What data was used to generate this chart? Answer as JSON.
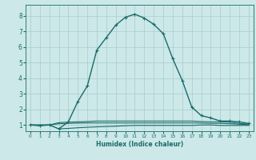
{
  "title": "",
  "xlabel": "Humidex (Indice chaleur)",
  "ylabel": "",
  "bg_color": "#cce8e8",
  "line_color": "#1a6b6b",
  "grid_color": "#aacccc",
  "xlim": [
    -0.5,
    23.5
  ],
  "ylim": [
    0.6,
    8.7
  ],
  "xticks": [
    0,
    1,
    2,
    3,
    4,
    5,
    6,
    7,
    8,
    9,
    10,
    11,
    12,
    13,
    14,
    15,
    16,
    17,
    18,
    19,
    20,
    21,
    22,
    23
  ],
  "yticks": [
    1,
    2,
    3,
    4,
    5,
    6,
    7,
    8
  ],
  "main_curve_x": [
    0,
    1,
    2,
    3,
    4,
    5,
    6,
    7,
    8,
    9,
    10,
    11,
    12,
    13,
    14,
    15,
    16,
    17,
    18,
    19,
    20,
    21,
    22,
    23
  ],
  "main_curve_y": [
    1.0,
    0.95,
    1.0,
    0.75,
    1.2,
    2.5,
    3.5,
    5.8,
    6.6,
    7.4,
    7.9,
    8.1,
    7.85,
    7.45,
    6.85,
    5.25,
    3.85,
    2.15,
    1.6,
    1.45,
    1.25,
    1.25,
    1.2,
    1.1
  ],
  "flat_curve1_x": [
    0,
    1,
    2,
    3,
    4,
    5,
    6,
    7,
    8,
    9,
    10,
    11,
    12,
    13,
    14,
    15,
    16,
    17,
    18,
    19,
    20,
    21,
    22,
    23
  ],
  "flat_curve1_y": [
    1.0,
    1.0,
    1.0,
    1.15,
    1.18,
    1.2,
    1.22,
    1.25,
    1.25,
    1.25,
    1.25,
    1.25,
    1.25,
    1.25,
    1.25,
    1.25,
    1.25,
    1.25,
    1.22,
    1.2,
    1.2,
    1.18,
    1.1,
    1.05
  ],
  "flat_curve2_x": [
    3,
    4,
    5,
    6,
    7,
    8,
    9,
    10,
    11,
    12,
    13,
    14,
    15,
    16,
    17,
    18,
    19,
    20,
    21,
    22,
    23
  ],
  "flat_curve2_y": [
    0.75,
    0.78,
    0.82,
    0.85,
    0.88,
    0.9,
    0.92,
    0.95,
    0.97,
    0.97,
    0.97,
    0.97,
    0.97,
    0.97,
    0.97,
    1.0,
    1.0,
    0.97,
    0.97,
    0.97,
    0.97
  ],
  "flat_curve3_x": [
    0,
    1,
    2,
    3,
    4,
    5,
    6,
    7,
    8,
    9,
    10,
    11,
    12,
    13,
    14,
    15,
    16,
    17,
    18,
    19,
    20,
    21,
    22,
    23
  ],
  "flat_curve3_y": [
    1.0,
    1.0,
    1.0,
    1.08,
    1.1,
    1.12,
    1.13,
    1.13,
    1.13,
    1.13,
    1.13,
    1.13,
    1.13,
    1.13,
    1.13,
    1.13,
    1.13,
    1.13,
    1.12,
    1.1,
    1.1,
    1.08,
    1.05,
    1.02
  ]
}
